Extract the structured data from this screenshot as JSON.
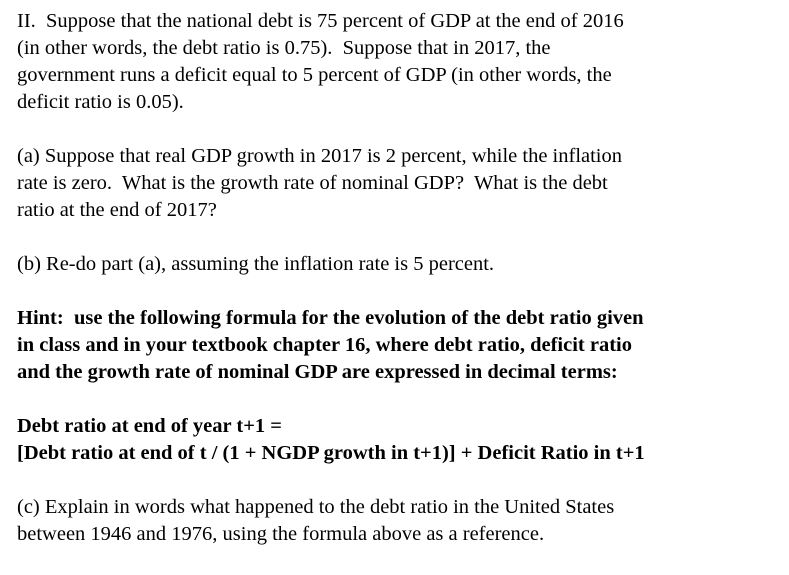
{
  "question": {
    "intro_lines": [
      "II.  Suppose that the national debt is 75 percent of GDP at the end of 2016",
      "(in other words, the debt ratio is 0.75).  Suppose that in 2017, the",
      "government runs a deficit equal to 5 percent of GDP (in other words, the",
      "deficit ratio is 0.05)."
    ],
    "part_a_lines": [
      "(a) Suppose that real GDP growth in 2017 is 2 percent, while the inflation",
      "rate is zero.  What is the growth rate of nominal GDP?  What is the debt",
      "ratio at the end of 2017?"
    ],
    "part_b_lines": [
      "(b) Re-do part (a), assuming the inflation rate is 5 percent."
    ],
    "hint_lines": [
      "Hint:  use the following formula for the evolution of the debt ratio given",
      "in class and in your textbook chapter 16, where debt ratio, deficit ratio",
      "and the growth rate of nominal GDP are expressed in decimal terms:"
    ],
    "formula_lines": [
      "Debt ratio at end of year t+1 =",
      "[Debt ratio at end of t / (1 + NGDP growth in t+1)] + Deficit Ratio in t+1"
    ],
    "part_c_lines": [
      "(c) Explain in words what happened to the debt ratio in the United States",
      "between 1946 and 1976, using the formula above as a reference."
    ]
  }
}
